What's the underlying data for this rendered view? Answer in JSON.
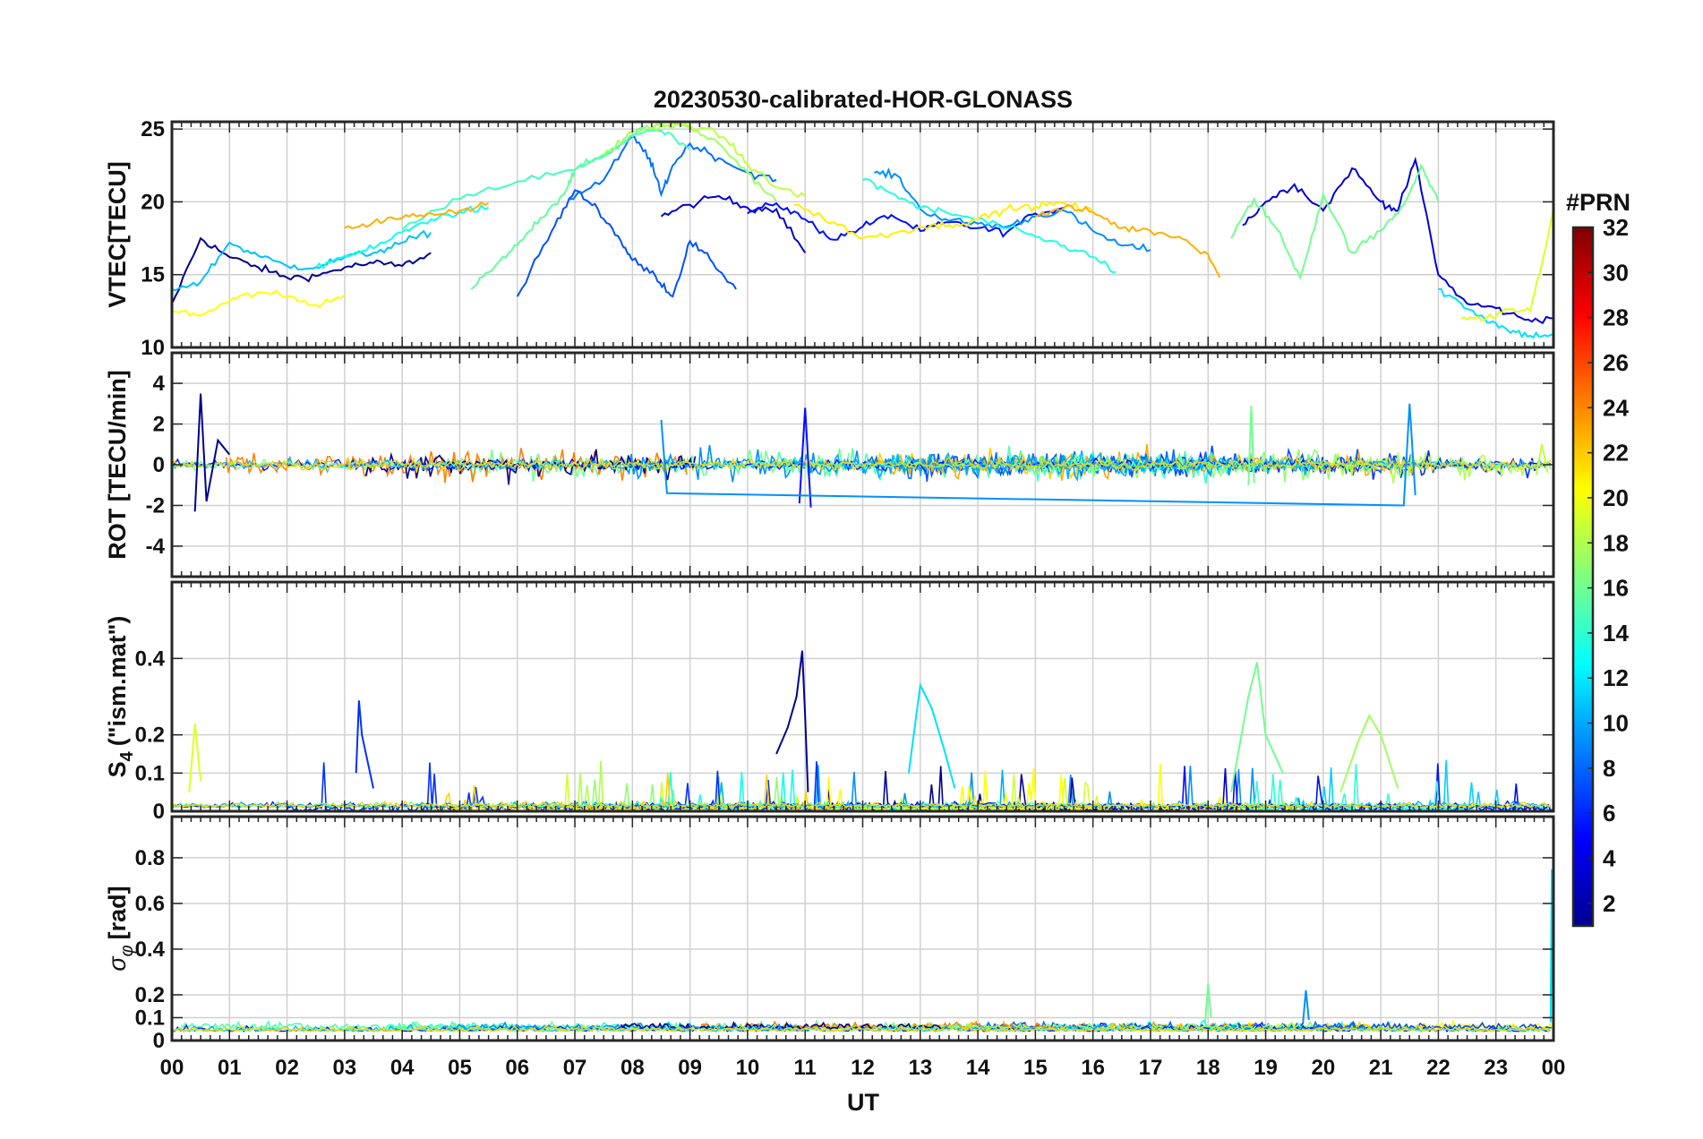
{
  "chart_data": {
    "type": "line",
    "title": "20230530-calibrated-HOR-GLONASS",
    "xlabel": "UT",
    "xlim": [
      0,
      24
    ],
    "x_ticks": [
      0,
      1,
      2,
      3,
      4,
      5,
      6,
      7,
      8,
      9,
      10,
      11,
      12,
      13,
      14,
      15,
      16,
      17,
      18,
      19,
      20,
      21,
      22,
      23,
      24
    ],
    "x_tick_labels": [
      "00",
      "01",
      "02",
      "03",
      "04",
      "05",
      "06",
      "07",
      "08",
      "09",
      "10",
      "11",
      "12",
      "13",
      "14",
      "15",
      "16",
      "17",
      "18",
      "19",
      "20",
      "21",
      "22",
      "23",
      "00"
    ],
    "grid": true,
    "colorbar": {
      "label": "#PRN",
      "range": [
        1,
        32
      ],
      "ticks": [
        2,
        4,
        6,
        8,
        10,
        12,
        14,
        16,
        18,
        20,
        22,
        24,
        26,
        28,
        30,
        32
      ],
      "tick_labels": [
        "2",
        "4",
        "6",
        "8",
        "10",
        "12",
        "14",
        "16",
        "18",
        "20",
        "22",
        "24",
        "26",
        "28",
        "30",
        "32"
      ],
      "colormap": "jet"
    },
    "panels": [
      {
        "id": "vtec",
        "ylabel": "VTEC[TECU]",
        "ylim": [
          10,
          25.5
        ],
        "y_ticks": [
          10,
          15,
          20,
          25
        ],
        "y_tick_labels": [
          "10",
          "15",
          "20",
          "25"
        ],
        "series": [
          {
            "prn": 1,
            "color": "#00008f",
            "x": [
              0.0,
              0.5,
              1.0,
              1.5,
              2.0,
              2.5,
              3.0,
              3.5,
              4.0,
              4.5
            ],
            "y": [
              13.0,
              17.5,
              16.2,
              15.5,
              14.8,
              14.9,
              15.5,
              15.8,
              15.6,
              16.5
            ]
          },
          {
            "prn": 3,
            "color": "#0000cf",
            "x": [
              8.5,
              9.0,
              9.5,
              10.0,
              10.5,
              11.0
            ],
            "y": [
              19.0,
              19.8,
              20.4,
              19.6,
              19.5,
              16.5
            ]
          },
          {
            "prn": 4,
            "color": "#0010ff",
            "x": [
              10.0,
              10.5,
              11.0,
              11.5,
              12.0,
              12.5,
              13.0,
              13.5,
              14.0,
              14.5,
              15.0,
              15.5
            ],
            "y": [
              19.2,
              19.9,
              18.8,
              17.4,
              18.3,
              19.1,
              18.0,
              18.6,
              18.2,
              17.9,
              19.2,
              19.6
            ]
          },
          {
            "prn": 3,
            "color": "#0000cf",
            "x": [
              18.6,
              19.0,
              19.5,
              20.0,
              20.5,
              21.0,
              21.3,
              21.6,
              22.0,
              22.5,
              23.0,
              23.5,
              24.0
            ],
            "y": [
              18.4,
              20.0,
              21.2,
              19.4,
              22.3,
              20.0,
              19.4,
              22.9,
              15.0,
              13.0,
              12.7,
              11.9,
              12.0
            ]
          },
          {
            "prn": 6,
            "color": "#0050ff",
            "x": [
              6.0,
              6.6,
              7.0,
              7.4,
              7.8,
              8.0,
              8.4,
              8.7,
              9.0,
              9.4,
              9.8
            ],
            "y": [
              13.5,
              18.0,
              20.8,
              19.5,
              17.3,
              16.0,
              14.9,
              13.5,
              17.3,
              15.8,
              14.0
            ]
          },
          {
            "prn": 7,
            "color": "#0070ff",
            "x": [
              6.9,
              7.5,
              8.0,
              8.3,
              8.5,
              8.7,
              9.0,
              9.5,
              10.0,
              10.5
            ],
            "y": [
              20.2,
              21.5,
              24.5,
              23.0,
              20.5,
              22.5,
              24.0,
              23.0,
              22.0,
              21.5
            ]
          },
          {
            "prn": 8,
            "color": "#0090ff",
            "x": [
              12.2,
              12.6,
              13.0,
              13.5,
              14.0,
              14.5,
              15.0,
              15.5,
              16.0,
              16.5,
              17.0
            ],
            "y": [
              22.0,
              21.8,
              19.5,
              18.7,
              18.5,
              18.3,
              19.0,
              19.4,
              18.0,
              17.0,
              16.7
            ]
          },
          {
            "prn": 11,
            "color": "#00c0ff",
            "x": [
              0.0,
              0.5,
              1.0,
              1.5,
              2.0,
              2.5,
              3.0,
              3.5,
              4.0,
              4.5
            ],
            "y": [
              14.0,
              14.5,
              17.2,
              16.3,
              15.6,
              15.5,
              16.2,
              16.5,
              17.2,
              17.9
            ]
          },
          {
            "prn": 13,
            "color": "#10ffef",
            "x": [
              2.5,
              3.0,
              3.5,
              4.0,
              4.5,
              5.0,
              5.5
            ],
            "y": [
              15.5,
              16.3,
              16.8,
              17.9,
              18.8,
              19.3,
              19.6
            ]
          },
          {
            "prn": 13,
            "color": "#20ffdf",
            "x": [
              12.0,
              12.5,
              13.0,
              13.5,
              14.0,
              14.5,
              15.0,
              15.5,
              16.0,
              16.4
            ],
            "y": [
              21.5,
              20.6,
              19.6,
              19.2,
              18.8,
              18.2,
              17.6,
              17.0,
              16.2,
              15.2
            ]
          },
          {
            "prn": 14,
            "color": "#40ffbf",
            "x": [
              4.0,
              5.0,
              6.0,
              7.0,
              7.5,
              8.0,
              8.5,
              9.0
            ],
            "y": [
              18.1,
              20.2,
              21.4,
              22.2,
              23.1,
              24.6,
              24.9,
              23.6
            ]
          },
          {
            "prn": 15,
            "color": "#60ff9f",
            "x": [
              5.2,
              5.6,
              6.0,
              6.4,
              6.8,
              7.0,
              7.4,
              7.8,
              8.2
            ],
            "y": [
              14.0,
              15.5,
              17.0,
              18.9,
              20.5,
              22.2,
              23.0,
              24.0,
              25.2
            ]
          },
          {
            "prn": 16,
            "color": "#70ff8f",
            "x": [
              18.4,
              18.8,
              19.2,
              19.6,
              20.0,
              20.5,
              21.0,
              21.4,
              21.7,
              22.0
            ],
            "y": [
              17.5,
              20.2,
              18.1,
              14.8,
              20.5,
              16.5,
              18.0,
              19.8,
              22.5,
              20.0
            ]
          },
          {
            "prn": 17,
            "color": "#9fff60",
            "x": [
              7.5,
              8.0,
              8.5,
              9.0,
              9.5,
              10.0,
              10.5
            ],
            "y": [
              23.2,
              24.8,
              25.3,
              25.1,
              24.0,
              22.0,
              20.0
            ]
          },
          {
            "prn": 18,
            "color": "#bfff40",
            "x": [
              8.3,
              8.8,
              9.2,
              9.6,
              10.0,
              10.5,
              11.0
            ],
            "y": [
              25.0,
              25.3,
              25.1,
              24.4,
              22.6,
              21.0,
              20.4
            ]
          },
          {
            "prn": 20,
            "color": "#ffff00",
            "x": [
              0.0,
              0.5,
              1.0,
              1.5,
              2.0,
              2.5,
              3.0
            ],
            "y": [
              12.5,
              12.2,
              13.2,
              13.8,
              13.5,
              12.9,
              13.6
            ]
          },
          {
            "prn": 20,
            "color": "#ffef00",
            "x": [
              10.8,
              11.5,
              12.0,
              12.5,
              13.0,
              13.5,
              14.0,
              14.5,
              15.0,
              15.5,
              16.0
            ],
            "y": [
              19.8,
              18.6,
              17.5,
              17.8,
              18.3,
              18.4,
              18.8,
              19.5,
              19.7,
              19.9,
              19.3
            ]
          },
          {
            "prn": 22,
            "color": "#ffaf00",
            "x": [
              3.0,
              3.5,
              4.0,
              4.5,
              5.0,
              5.5
            ],
            "y": [
              18.2,
              18.6,
              18.9,
              19.2,
              19.4,
              19.9
            ]
          },
          {
            "prn": 22,
            "color": "#ffaf00",
            "x": [
              15.0,
              15.5,
              16.0,
              16.5,
              17.0,
              17.5,
              18.0,
              18.2
            ],
            "y": [
              19.0,
              19.6,
              19.3,
              18.2,
              18.0,
              17.6,
              16.4,
              14.8
            ]
          },
          {
            "prn": 12,
            "color": "#00e0ff",
            "x": [
              22.0,
              22.4,
              22.8,
              23.2,
              23.6,
              24.0
            ],
            "y": [
              14.0,
              13.0,
              12.0,
              11.2,
              10.8,
              10.9
            ]
          },
          {
            "prn": 19,
            "color": "#dfff20",
            "x": [
              22.4,
              22.8,
              23.2,
              23.6,
              23.9,
              24.0
            ],
            "y": [
              12.0,
              11.9,
              12.6,
              12.5,
              17.5,
              19.5
            ]
          }
        ]
      },
      {
        "id": "rot",
        "ylabel": "ROT [TECU/min]",
        "ylim": [
          -5.5,
          5.5
        ],
        "y_ticks": [
          -4,
          -2,
          0,
          2,
          4
        ],
        "y_tick_labels": [
          "-4",
          "-2",
          "0",
          "2",
          "4"
        ],
        "series": [
          {
            "prn": 1,
            "color": "#00008f",
            "x": [
              0.4,
              0.5,
              0.6,
              0.8,
              1.0
            ],
            "y": [
              -2.3,
              3.5,
              -1.8,
              1.2,
              0.5
            ]
          },
          {
            "prn": 4,
            "color": "#0010ff",
            "x": [
              10.9,
              11.0,
              11.1
            ],
            "y": [
              -1.9,
              2.8,
              -2.1
            ]
          },
          {
            "prn": 8,
            "color": "#0090ff",
            "x": [
              8.5,
              8.6,
              21.4,
              21.5,
              21.6
            ],
            "y": [
              2.2,
              -1.4,
              -2.0,
              3.0,
              -1.5
            ]
          },
          {
            "prn": 16,
            "color": "#70ff8f",
            "x": [
              18.7,
              18.75,
              18.8
            ],
            "y": [
              -1.0,
              2.9,
              -0.9
            ]
          },
          {
            "prn": 18,
            "color": "#bfff40",
            "x": [
              23.7,
              23.8,
              23.9
            ],
            "y": [
              -0.5,
              1.0,
              -0.4
            ]
          }
        ]
      },
      {
        "id": "s4",
        "ylabel": "S4 (\"ism.mat\")",
        "ylabel_main": "S",
        "ylabel_sub": "4",
        "ylabel_tail": "(\"ism.mat\")",
        "ylim": [
          0,
          0.6
        ],
        "y_ticks": [
          0,
          0.1,
          0.2,
          0.4
        ],
        "y_tick_labels": [
          "0",
          "0.1",
          "0.2",
          "0.4"
        ],
        "series": [
          {
            "prn": 1,
            "color": "#00008f",
            "x": [
              10.5,
              10.7,
              10.85,
              10.95,
              11.0,
              11.05
            ],
            "y": [
              0.15,
              0.22,
              0.3,
              0.42,
              0.25,
              0.05
            ]
          },
          {
            "prn": 12,
            "color": "#00e0ff",
            "x": [
              12.8,
              13.0,
              13.2,
              13.4,
              13.6
            ],
            "y": [
              0.1,
              0.33,
              0.27,
              0.17,
              0.06
            ]
          },
          {
            "prn": 16,
            "color": "#70ff8f",
            "x": [
              18.4,
              18.7,
              18.85,
              19.0,
              19.3
            ],
            "y": [
              0.05,
              0.3,
              0.39,
              0.2,
              0.1
            ]
          },
          {
            "prn": 17,
            "color": "#9fff60",
            "x": [
              20.3,
              20.6,
              20.8,
              21.0,
              21.3
            ],
            "y": [
              0.05,
              0.18,
              0.25,
              0.2,
              0.06
            ]
          },
          {
            "prn": 5,
            "color": "#0030ff",
            "x": [
              3.2,
              3.25,
              3.3,
              3.5
            ],
            "y": [
              0.1,
              0.29,
              0.2,
              0.06
            ]
          },
          {
            "prn": 19,
            "color": "#dfff20",
            "x": [
              0.3,
              0.4,
              0.5
            ],
            "y": [
              0.05,
              0.23,
              0.08
            ]
          }
        ]
      },
      {
        "id": "sigma",
        "ylabel": "σφ[rad]",
        "ylabel_main": "σ",
        "ylabel_sub": "φ",
        "ylabel_tail": "[rad]",
        "ylim": [
          0,
          0.98
        ],
        "y_ticks": [
          0,
          0.1,
          0.2,
          0.4,
          0.6,
          0.8
        ],
        "y_tick_labels": [
          "0",
          "0.1",
          "0.2",
          "0.4",
          "0.6",
          "0.8"
        ],
        "series": [
          {
            "prn": 12,
            "color": "#00e0ff",
            "x": [
              23.95,
              23.97,
              23.99
            ],
            "y": [
              0.08,
              0.75,
              0.1
            ]
          },
          {
            "prn": 8,
            "color": "#0090ff",
            "x": [
              19.65,
              19.7,
              19.75
            ],
            "y": [
              0.08,
              0.22,
              0.09
            ]
          },
          {
            "prn": 16,
            "color": "#70ff8f",
            "x": [
              17.95,
              18.0,
              18.05
            ],
            "y": [
              0.08,
              0.25,
              0.1
            ]
          }
        ]
      }
    ]
  }
}
